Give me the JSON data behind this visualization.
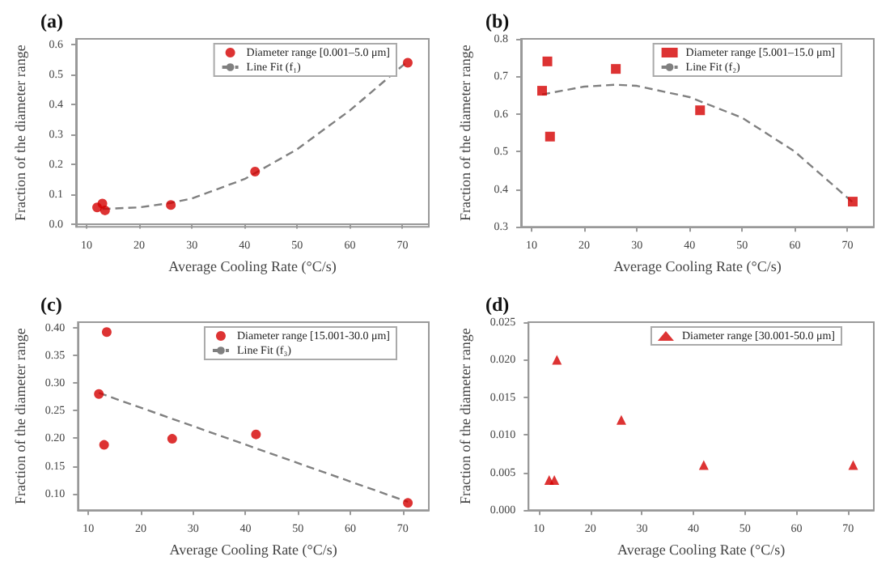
{
  "chart_data": [
    {
      "type": "scatter",
      "title": "(a)",
      "xlabel": "Average Cooling Rate (°C/s)",
      "ylabel": "Fraction of the diameter range",
      "x": [
        12,
        13,
        13.5,
        26,
        42,
        71
      ],
      "xlim": [
        8,
        75
      ],
      "xticks": [
        10,
        20,
        30,
        40,
        50,
        60,
        70
      ],
      "ylim": [
        -0.01,
        0.62
      ],
      "yticks": [
        {
          "value": 0,
          "label": "0.0"
        },
        0.1,
        0.2,
        0.3,
        0.4,
        0.5,
        0.6
      ],
      "legend": "top right",
      "grid": false,
      "series": [
        {
          "name": "Diameter range [0.001–5.0 μm]",
          "color": "#d40000",
          "marker": "circle",
          "values": [
            0.055,
            0.068,
            0.045,
            0.063,
            0.175,
            0.54
          ]
        },
        {
          "type": "line",
          "name": "Line Fit (f₁)",
          "color": "#808080",
          "marker": "none",
          "line_style": "dashed",
          "x": [
            13,
            20,
            26,
            30,
            40,
            50,
            60,
            71
          ],
          "values": [
            0.05,
            0.055,
            0.07,
            0.085,
            0.15,
            0.25,
            0.38,
            0.545
          ]
        }
      ]
    },
    {
      "type": "scatter",
      "title": "(b)",
      "xlabel": "Average Cooling Rate (°C/s)",
      "ylabel": "Fraction of the diameter range",
      "x": [
        12,
        13,
        13.5,
        26,
        42,
        71
      ],
      "xlim": [
        8,
        75
      ],
      "xticks": [
        10,
        20,
        30,
        40,
        50,
        60,
        70
      ],
      "ylim": [
        0.3,
        0.8
      ],
      "yticks": [
        0.3,
        0.4,
        0.5,
        0.6,
        0.7,
        0.8
      ],
      "legend": "top right",
      "grid": false,
      "series": [
        {
          "name": "Diameter range [5.001–15.0 μm]",
          "color": "#d40000",
          "marker": "square",
          "values": [
            0.662,
            0.74,
            0.54,
            0.72,
            0.61,
            0.367
          ]
        },
        {
          "type": "line",
          "name": "Line Fit (f₂)",
          "color": "#808080",
          "marker": "none",
          "line_style": "dashed",
          "x": [
            12,
            20,
            26,
            30,
            40,
            50,
            60,
            71
          ],
          "values": [
            0.652,
            0.673,
            0.678,
            0.675,
            0.645,
            0.59,
            0.5,
            0.365
          ]
        }
      ]
    },
    {
      "type": "scatter",
      "title": "(c)",
      "xlabel": "Average Cooling Rate (°C/s)",
      "ylabel": "Fraction of the diameter range",
      "x": [
        12,
        13,
        13.5,
        26,
        42,
        71
      ],
      "xlim": [
        8,
        75
      ],
      "xticks": [
        10,
        20,
        30,
        40,
        50,
        60,
        70
      ],
      "ylim": [
        0.07,
        0.41
      ],
      "yticks": [
        {
          "value": 0.1,
          "label": "0.10"
        },
        {
          "value": 0.15,
          "label": "0.15"
        },
        {
          "value": 0.2,
          "label": "0.20"
        },
        {
          "value": 0.25,
          "label": "0.25"
        },
        {
          "value": 0.3,
          "label": "0.30"
        },
        {
          "value": 0.35,
          "label": "0.35"
        },
        {
          "value": 0.4,
          "label": "0.40"
        }
      ],
      "legend": "top right",
      "grid": false,
      "series": [
        {
          "name": "Diameter range [15.001-30.0 μm]",
          "color": "#d40000",
          "marker": "circle",
          "values": [
            0.28,
            0.188,
            0.392,
            0.199,
            0.207,
            0.083
          ]
        },
        {
          "type": "line",
          "name": "Line Fit (f₃)",
          "color": "#808080",
          "marker": "none",
          "line_style": "dashed",
          "x": [
            12,
            71
          ],
          "values": [
            0.282,
            0.085
          ]
        }
      ]
    },
    {
      "type": "scatter",
      "title": "(d)",
      "xlabel": "Average Cooling Rate (°C/s)",
      "ylabel": "Fraction of the diameter range",
      "x": [
        12,
        13,
        13.5,
        26,
        42,
        71
      ],
      "xlim": [
        8,
        75
      ],
      "xticks": [
        10,
        20,
        30,
        40,
        50,
        60,
        70
      ],
      "ylim": [
        0,
        0.025
      ],
      "yticks": [
        {
          "value": 0,
          "label": "0.000"
        },
        {
          "value": 0.005,
          "label": "0.005"
        },
        {
          "value": 0.01,
          "label": "0.010"
        },
        {
          "value": 0.015,
          "label": "0.015"
        },
        {
          "value": 0.02,
          "label": "0.020"
        },
        {
          "value": 0.025,
          "label": "0.025"
        }
      ],
      "legend": "top right",
      "grid": false,
      "series": [
        {
          "name": "Diameter range [30.001-50.0 μm]",
          "color": "#d40000",
          "marker": "triangle",
          "values": [
            0.004,
            0.004,
            0.02,
            0.012,
            0.006,
            0.006
          ]
        }
      ]
    }
  ]
}
